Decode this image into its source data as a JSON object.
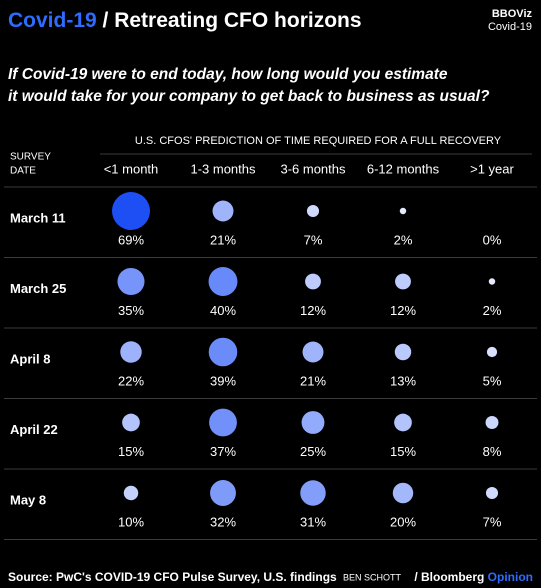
{
  "chart_data": {
    "type": "bubble",
    "title": "Covid-19",
    "title_rest": "/ Retreating CFO horizons",
    "brand": "BBOViz",
    "brand_topic": "Covid-19",
    "subtitle": [
      "If Covid-19 were to end today, how long would you estimate",
      "it would take for your company to get back to business as usual?"
    ],
    "header": "U.S. CFOS' PREDICTION OF TIME REQUIRED FOR A FULL RECOVERY",
    "row_header": [
      "SURVEY",
      "DATE"
    ],
    "categories": [
      "<1 month",
      "1-3 months",
      "3-6 months",
      "6-12 months",
      ">1 year"
    ],
    "series": [
      {
        "name": "March 11",
        "values": [
          69,
          21,
          7,
          2,
          0
        ],
        "value_labels": [
          "69%",
          "21%",
          "7%",
          "2%",
          "0%"
        ]
      },
      {
        "name": "March 25",
        "values": [
          35,
          40,
          12,
          12,
          2
        ],
        "value_labels": [
          "35%",
          "40%",
          "12%",
          "12%",
          "2%"
        ]
      },
      {
        "name": "April 8",
        "values": [
          22,
          39,
          21,
          13,
          5
        ],
        "value_labels": [
          "22%",
          "39%",
          "21%",
          "13%",
          "5%"
        ]
      },
      {
        "name": "April 22",
        "values": [
          15,
          37,
          25,
          15,
          8
        ],
        "value_labels": [
          "15%",
          "37%",
          "25%",
          "15%",
          "8%"
        ]
      },
      {
        "name": "May 8",
        "values": [
          10,
          32,
          31,
          20,
          7
        ],
        "value_labels": [
          "10%",
          "32%",
          "31%",
          "20%",
          "7%"
        ]
      }
    ],
    "colors": [
      "#f2f4ff",
      "#1d4ff5"
    ],
    "source": "Source: PwC's COVID-19 CFO Pulse Survey, U.S. findings",
    "author": "BEN SCHOTT",
    "publisher": "Bloomberg",
    "publisher_section": "Opinion"
  }
}
